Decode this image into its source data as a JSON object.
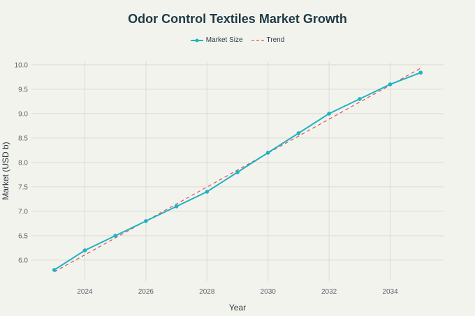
{
  "chart_data": {
    "type": "line",
    "title": "Odor Control Textiles Market Growth",
    "xlabel": "Year",
    "ylabel": "Market (USD b)",
    "x": [
      2023,
      2024,
      2025,
      2026,
      2027,
      2028,
      2029,
      2030,
      2031,
      2032,
      2033,
      2034,
      2035
    ],
    "series": [
      {
        "name": "Market Size",
        "style": "solid",
        "color": "#1fb3c4",
        "markers": true,
        "values": [
          5.8,
          6.2,
          6.5,
          6.8,
          7.1,
          7.4,
          7.8,
          8.2,
          8.6,
          9.0,
          9.3,
          9.6,
          9.84
        ]
      },
      {
        "name": "Trend",
        "style": "dashed",
        "color": "#d9534f",
        "markers": false,
        "x": [
          2023,
          2035
        ],
        "values": [
          5.76,
          9.93
        ]
      }
    ],
    "xticks": [
      2024,
      2026,
      2028,
      2030,
      2032,
      2034
    ],
    "yticks": [
      6.0,
      6.5,
      7.0,
      7.5,
      8.0,
      8.5,
      9.0,
      9.5,
      10.0
    ],
    "ytick_labels": [
      "6.0",
      "6.5",
      "7.0",
      "7.5",
      "8.0",
      "8.5",
      "9.0",
      "9.5",
      "10.0"
    ],
    "xlim": [
      2022.25,
      2035.75
    ],
    "ylim": [
      5.57,
      10.07
    ],
    "grid": true,
    "legend": "top-center"
  }
}
